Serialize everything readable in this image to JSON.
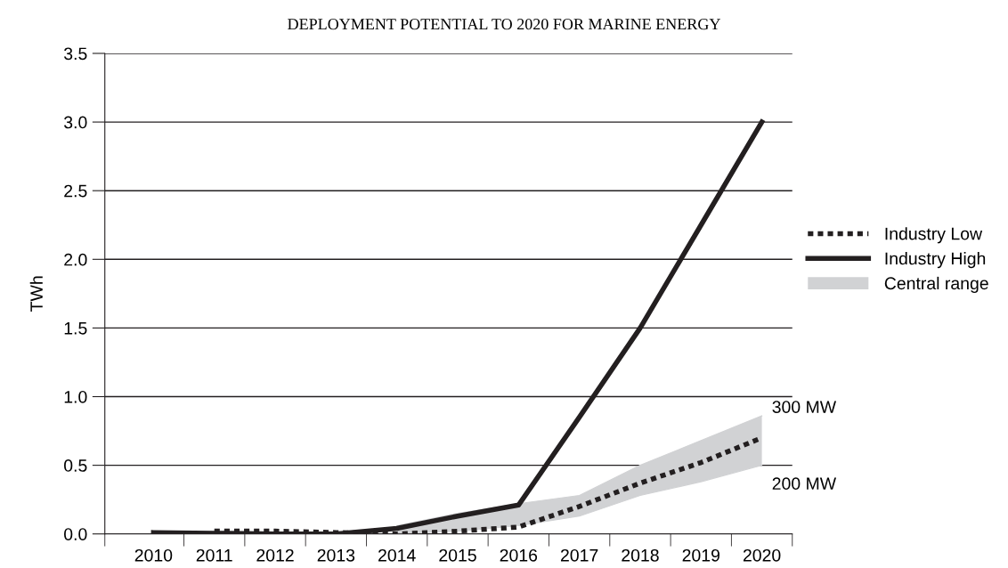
{
  "chart_data": {
    "type": "line",
    "title": "DEPLOYMENT POTENTIAL TO 2020 FOR MARINE ENERGY",
    "ylabel": "TWh",
    "categories": [
      "2010",
      "2011",
      "2012",
      "2013",
      "2014",
      "2015",
      "2016",
      "2017",
      "2018",
      "2019",
      "2020"
    ],
    "series": [
      {
        "name": "Industry Low",
        "color": "#231f20",
        "line_style": "dotted",
        "values": [
          null,
          0.02,
          0.02,
          0.01,
          0.0,
          0.02,
          0.05,
          0.2,
          0.37,
          0.52,
          0.7
        ]
      },
      {
        "name": "Industry High",
        "color": "#231f20",
        "line_style": "solid",
        "values": [
          0.01,
          0.005,
          0.0,
          0.0,
          0.04,
          0.13,
          0.21,
          0.85,
          1.5,
          2.25,
          3.0
        ]
      },
      {
        "name": "Central range",
        "type": "area",
        "color": "#d1d2d4",
        "values": [
          null,
          null,
          null,
          null,
          null,
          null,
          null,
          null,
          null,
          null,
          null
        ],
        "lower": [
          null,
          null,
          null,
          null,
          0.0,
          0.02,
          0.06,
          0.13,
          0.28,
          0.38,
          0.5
        ],
        "upper": [
          null,
          null,
          null,
          null,
          0.06,
          0.15,
          0.22,
          0.28,
          0.5,
          0.68,
          0.86
        ]
      }
    ],
    "ylim": [
      0,
      3.5
    ],
    "yticks": [
      {
        "value": 0,
        "label": "0.0"
      },
      0.5,
      {
        "value": 1,
        "label": "1.0"
      },
      1.5,
      {
        "value": 2,
        "label": "2.0"
      },
      2.5,
      {
        "value": 3,
        "label": "3.0"
      },
      3.5
    ],
    "grid": "y",
    "legend": "right",
    "annotations": [
      {
        "text": "300 MW",
        "x": "2020",
        "y": 0.86
      },
      {
        "text": "200 MW",
        "x": "2020",
        "y": 0.5
      }
    ]
  }
}
